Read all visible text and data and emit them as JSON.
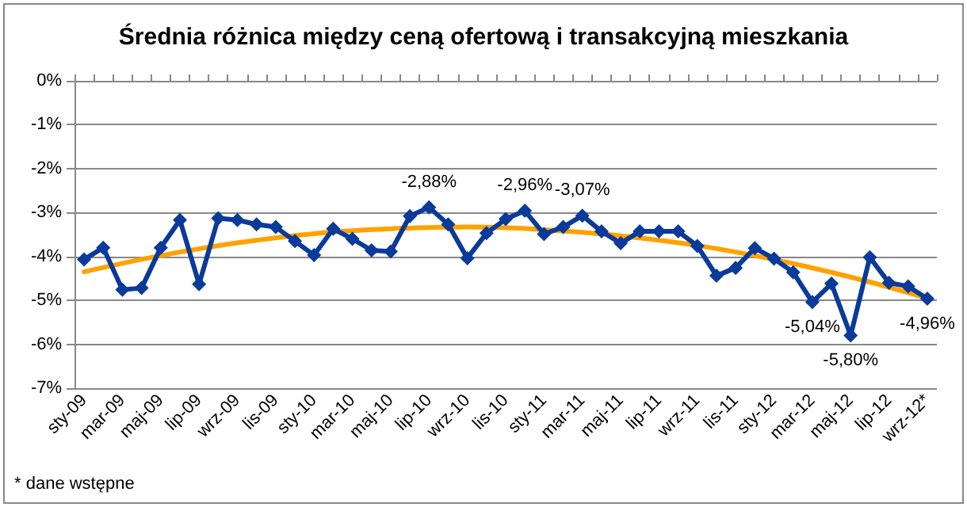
{
  "chart_data": {
    "type": "line",
    "title": "Średnia różnica między ceną ofertową i transakcyjną mieszkania",
    "annotations": [
      "* dane wstępne"
    ],
    "categories": [
      "sty-09",
      null,
      "mar-09",
      null,
      "maj-09",
      null,
      "lip-09",
      null,
      "wrz-09",
      null,
      "lis-09",
      null,
      "sty-10",
      null,
      "mar-10",
      null,
      "maj-10",
      null,
      "lip-10",
      null,
      "wrz-10",
      null,
      "lis-10",
      null,
      "sty-11",
      null,
      "mar-11",
      null,
      "maj-11",
      null,
      "lip-11",
      null,
      "wrz-11",
      null,
      "lis-11",
      null,
      "sty-12",
      null,
      "mar-12",
      null,
      "maj-12",
      null,
      "lip-12",
      null,
      "wrz-12*"
    ],
    "series": [
      {
        "color": "#0a3a9a",
        "marker": "diamond",
        "values": [
          -4.07,
          -3.8,
          -4.76,
          -4.72,
          -3.8,
          -3.17,
          -4.63,
          -3.13,
          -3.17,
          -3.27,
          -3.33,
          -3.65,
          -3.97,
          -3.37,
          -3.6,
          -3.86,
          -3.89,
          -3.08,
          -2.88,
          -3.27,
          -4.04,
          -3.47,
          -3.15,
          -2.96,
          -3.49,
          -3.33,
          -3.07,
          -3.43,
          -3.7,
          -3.43,
          -3.43,
          -3.43,
          -3.76,
          -4.44,
          -4.26,
          -3.81,
          -4.05,
          -4.36,
          -5.04,
          -4.62,
          -5.8,
          -4.02,
          -4.6,
          -4.68,
          -4.96
        ],
        "value_labels": [
          null,
          null,
          null,
          null,
          null,
          null,
          null,
          null,
          null,
          null,
          null,
          null,
          null,
          null,
          null,
          null,
          null,
          null,
          "-2,88%",
          null,
          null,
          null,
          null,
          "-2,96%",
          null,
          null,
          "-3,07%",
          null,
          null,
          null,
          null,
          null,
          null,
          null,
          null,
          null,
          null,
          null,
          "-5,04%",
          null,
          "-5,80%",
          null,
          null,
          null,
          "-4,96%"
        ]
      },
      {
        "color": "#ffa200",
        "marker": "none",
        "values": [
          -4.35,
          null,
          null,
          null,
          -3.98,
          null,
          null,
          null,
          -3.69,
          null,
          null,
          null,
          -3.48,
          null,
          null,
          null,
          -3.37,
          null,
          null,
          null,
          -3.33,
          null,
          null,
          null,
          -3.39,
          null,
          null,
          null,
          -3.53,
          null,
          null,
          null,
          -3.75,
          null,
          null,
          null,
          -4.07,
          null,
          null,
          null,
          -4.47,
          null,
          null,
          null,
          -4.95
        ]
      }
    ],
    "ylim": [
      -7,
      0
    ],
    "yticks": [
      {
        "value": 0,
        "label": "0%"
      },
      {
        "value": -1,
        "label": "-1%"
      },
      {
        "value": -2,
        "label": "-2%"
      },
      {
        "value": -3,
        "label": "-3%"
      },
      {
        "value": -4,
        "label": "-4%"
      },
      {
        "value": -5,
        "label": "-5%"
      },
      {
        "value": -6,
        "label": "-6%"
      },
      {
        "value": -7,
        "label": "-7%"
      }
    ],
    "grid": "y",
    "line_style": "solid"
  }
}
